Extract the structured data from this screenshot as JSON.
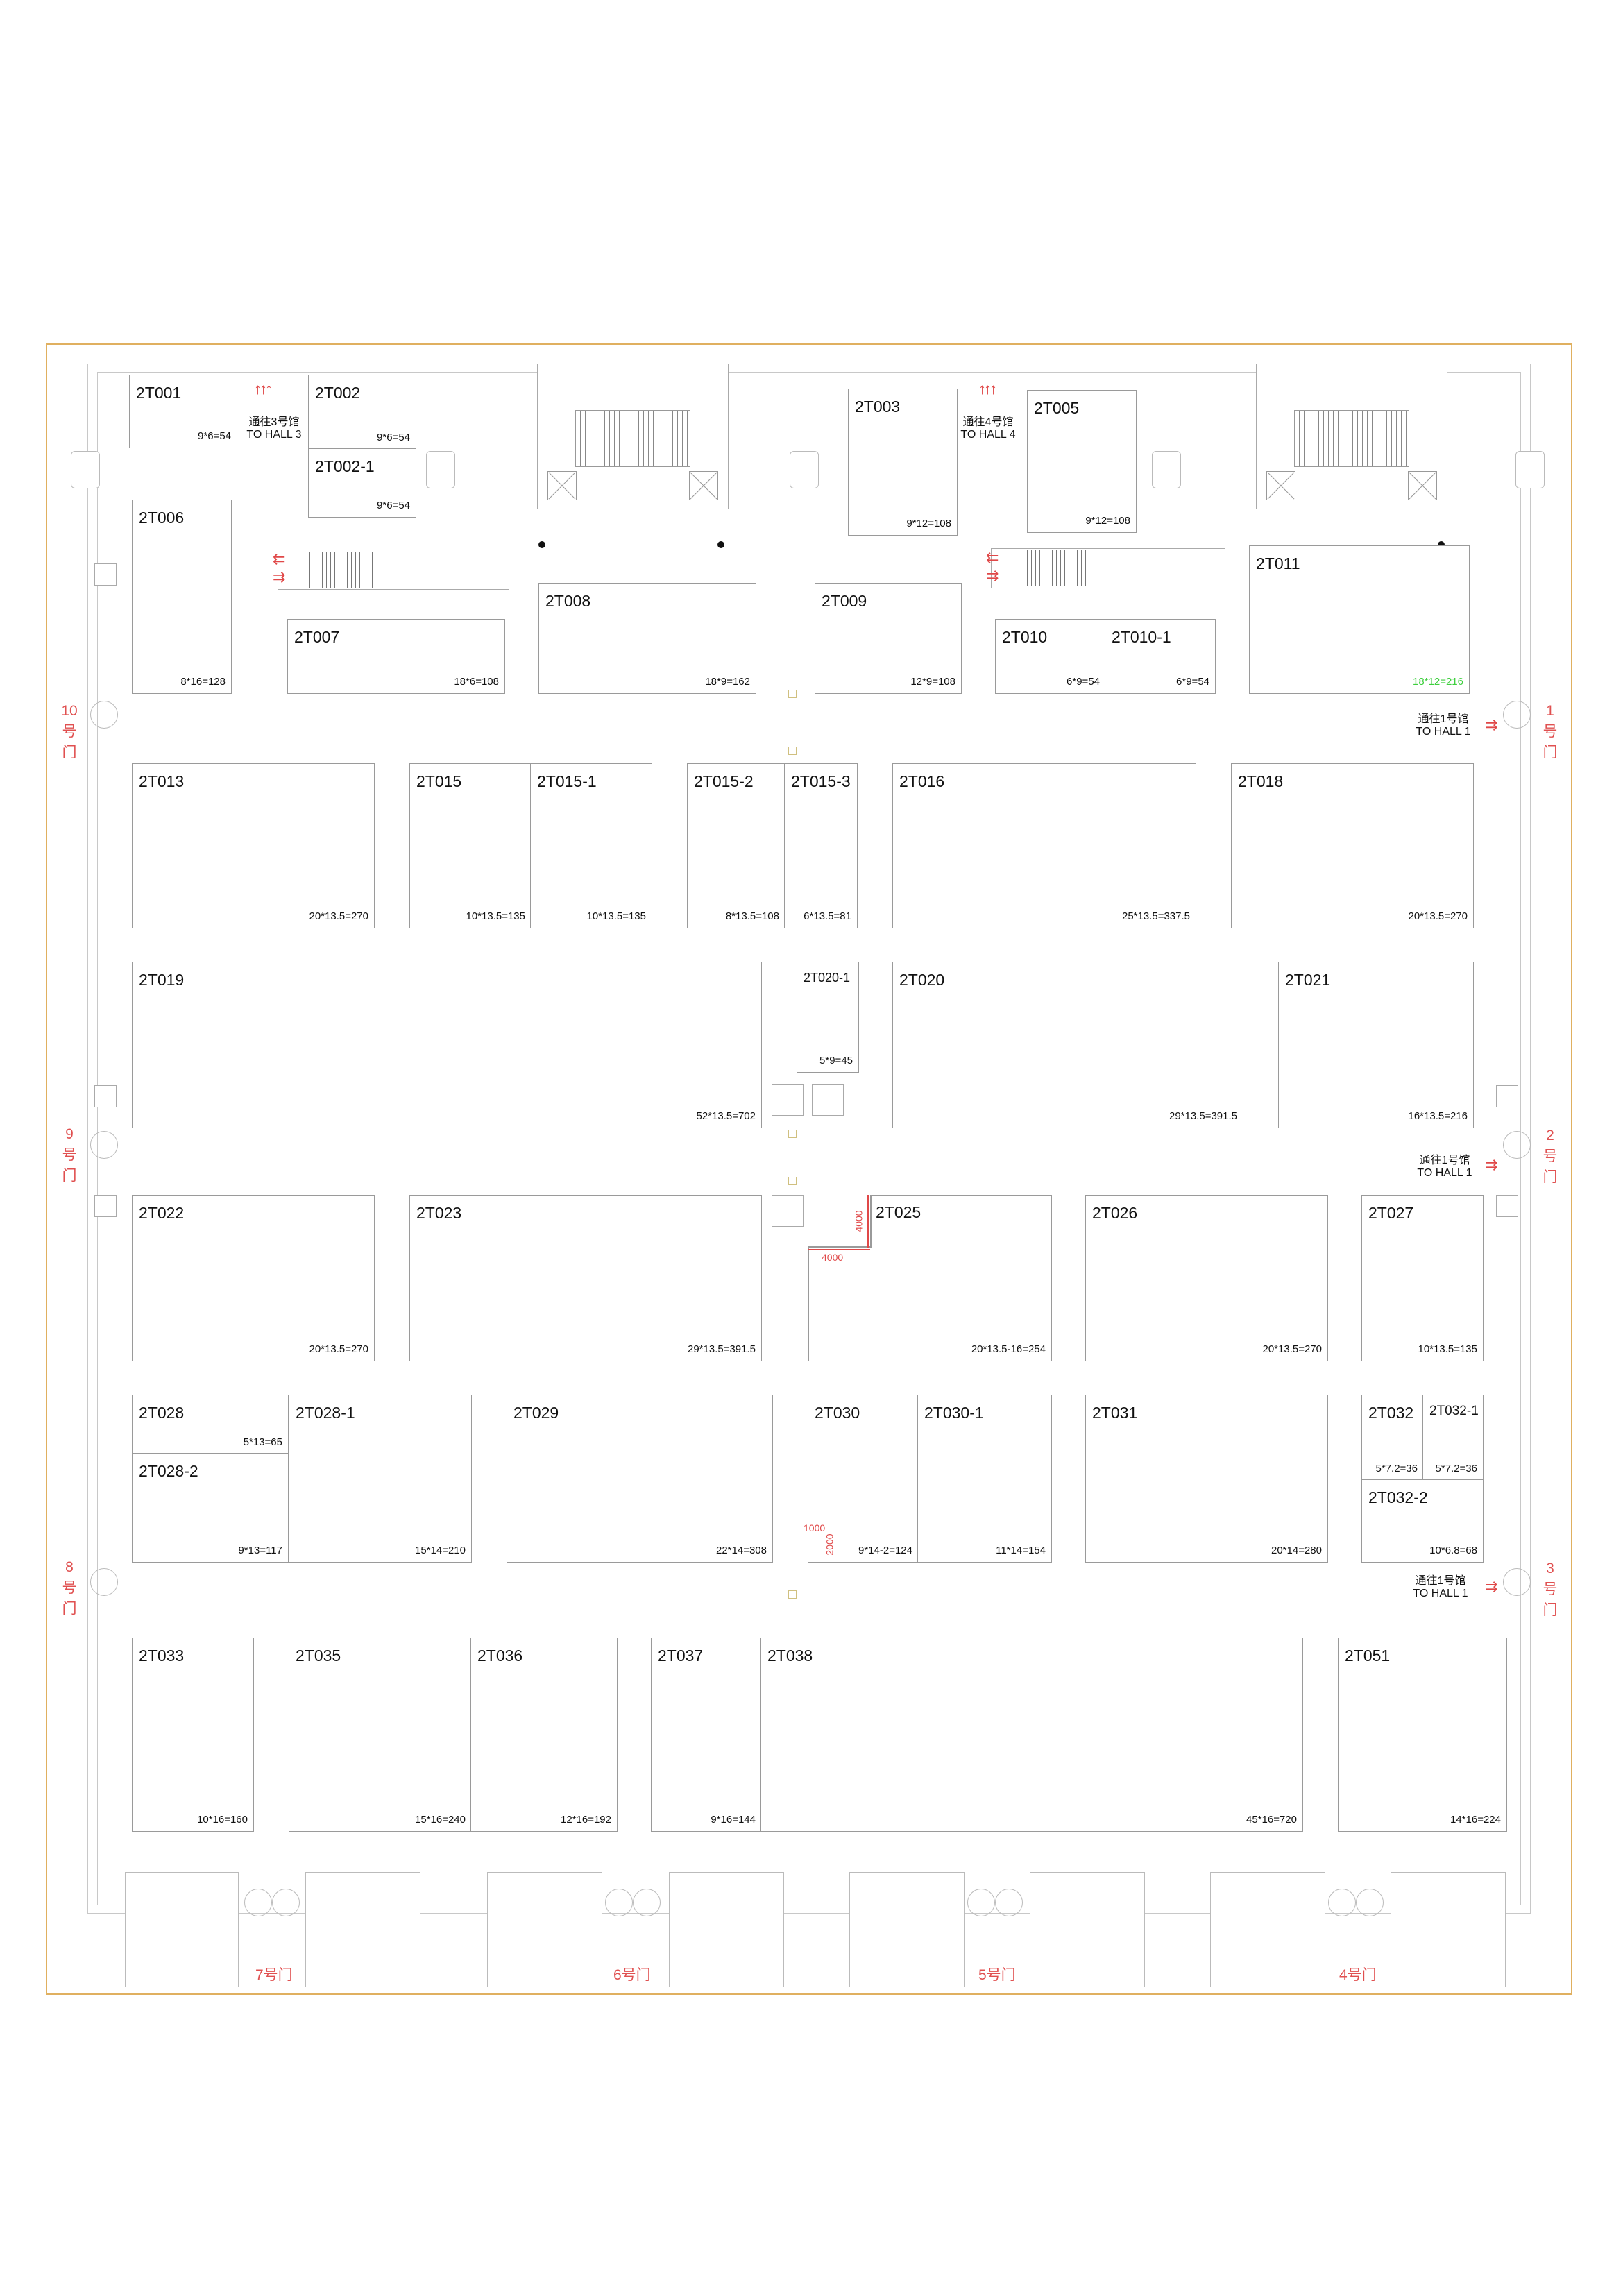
{
  "booths": [
    {
      "id": "2T001",
      "size": "9*6=54"
    },
    {
      "id": "2T002",
      "size": "9*6=54"
    },
    {
      "id": "2T002-1",
      "size": "9*6=54"
    },
    {
      "id": "2T003",
      "size": "9*12=108"
    },
    {
      "id": "2T005",
      "size": "9*12=108"
    },
    {
      "id": "2T006",
      "size": "8*16=128"
    },
    {
      "id": "2T007",
      "size": "18*6=108"
    },
    {
      "id": "2T008",
      "size": "18*9=162"
    },
    {
      "id": "2T009",
      "size": "12*9=108"
    },
    {
      "id": "2T010",
      "size": "6*9=54"
    },
    {
      "id": "2T010-1",
      "size": "6*9=54"
    },
    {
      "id": "2T011",
      "size": "18*12=216"
    },
    {
      "id": "2T013",
      "size": "20*13.5=270"
    },
    {
      "id": "2T015",
      "size": "10*13.5=135"
    },
    {
      "id": "2T015-1",
      "size": "10*13.5=135"
    },
    {
      "id": "2T015-2",
      "size": "8*13.5=108"
    },
    {
      "id": "2T015-3",
      "size": "6*13.5=81"
    },
    {
      "id": "2T016",
      "size": "25*13.5=337.5"
    },
    {
      "id": "2T018",
      "size": "20*13.5=270"
    },
    {
      "id": "2T019",
      "size": "52*13.5=702"
    },
    {
      "id": "2T020-1",
      "size": "5*9=45"
    },
    {
      "id": "2T020",
      "size": "29*13.5=391.5"
    },
    {
      "id": "2T021",
      "size": "16*13.5=216"
    },
    {
      "id": "2T022",
      "size": "20*13.5=270"
    },
    {
      "id": "2T023",
      "size": "29*13.5=391.5"
    },
    {
      "id": "2T025",
      "size": "20*13.5-16=254"
    },
    {
      "id": "2T026",
      "size": "20*13.5=270"
    },
    {
      "id": "2T027",
      "size": "10*13.5=135"
    },
    {
      "id": "2T028",
      "size": "5*13=65"
    },
    {
      "id": "2T028-1",
      "size": "15*14=210"
    },
    {
      "id": "2T028-2",
      "size": "9*13=117"
    },
    {
      "id": "2T029",
      "size": "22*14=308"
    },
    {
      "id": "2T030",
      "size": "9*14-2=124"
    },
    {
      "id": "2T030-1",
      "size": "11*14=154"
    },
    {
      "id": "2T031",
      "size": "20*14=280"
    },
    {
      "id": "2T032",
      "size": "5*7.2=36"
    },
    {
      "id": "2T032-1",
      "size": "5*7.2=36"
    },
    {
      "id": "2T032-2",
      "size": "10*6.8=68"
    },
    {
      "id": "2T033",
      "size": "10*16=160"
    },
    {
      "id": "2T035",
      "size": "15*16=240"
    },
    {
      "id": "2T036",
      "size": "12*16=192"
    },
    {
      "id": "2T037",
      "size": "9*16=144"
    },
    {
      "id": "2T038",
      "size": "45*16=720"
    },
    {
      "id": "2T051",
      "size": "14*16=224"
    }
  ],
  "passages": {
    "hall3": {
      "cn": "通往3号馆",
      "en": "TO HALL 3"
    },
    "hall4": {
      "cn": "通往4号馆",
      "en": "TO HALL 4"
    },
    "hall1_a": {
      "cn": "通往1号馆",
      "en": "TO HALL 1"
    },
    "hall1_b": {
      "cn": "通往1号馆",
      "en": "TO HALL 1"
    },
    "hall1_c": {
      "cn": "通往1号馆",
      "en": "TO HALL 1"
    }
  },
  "doors": {
    "d1": "1号门",
    "d2": "2号门",
    "d3": "3号门",
    "d4": "4号门",
    "d5": "5号门",
    "d6": "6号门",
    "d7": "7号门",
    "d8": "8号门",
    "d9": "9号门",
    "d10": "10号门"
  },
  "dimensions": {
    "width": "4000",
    "height": "4000",
    "small_w": "1000",
    "small_h": "2000"
  },
  "colors": {
    "frame": "#e0b060",
    "door_label": "#e05050",
    "highlight_size": "#3ecf3e"
  }
}
